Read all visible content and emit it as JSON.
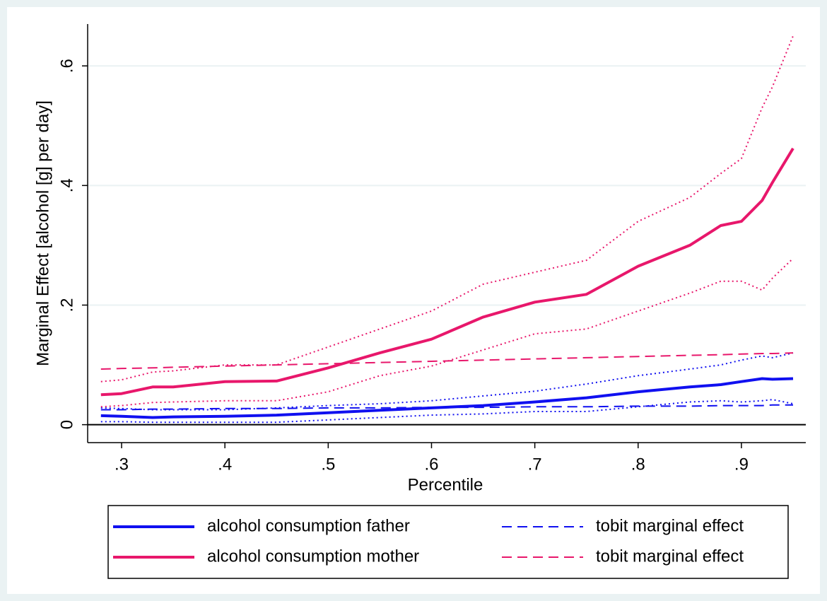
{
  "chart_data": {
    "type": "line",
    "xlabel": "Percentile",
    "ylabel": "Marginal Effect [alcohol [g] per day]",
    "x": [
      0.28,
      0.3,
      0.33,
      0.35,
      0.4,
      0.45,
      0.5,
      0.55,
      0.6,
      0.65,
      0.7,
      0.75,
      0.8,
      0.85,
      0.88,
      0.9,
      0.92,
      0.93,
      0.95
    ],
    "xlim": [
      0.28,
      0.95
    ],
    "xticks": [
      {
        "value": 0.3,
        "label": ".3"
      },
      {
        "value": 0.4,
        "label": ".4"
      },
      {
        "value": 0.5,
        "label": ".5"
      },
      {
        "value": 0.6,
        "label": ".6"
      },
      {
        "value": 0.7,
        "label": ".7"
      },
      {
        "value": 0.8,
        "label": ".8"
      },
      {
        "value": 0.9,
        "label": ".9"
      }
    ],
    "ylim": [
      -0.03,
      0.67
    ],
    "yticks": [
      0,
      {
        "value": 0.2,
        "label": ".2"
      },
      {
        "value": 0.4,
        "label": ".4"
      },
      {
        "value": 0.6,
        "label": ".6"
      }
    ],
    "grid": true,
    "legend": "bottom",
    "series": [
      {
        "name": "alcohol consumption father",
        "color": "#1010f0",
        "style": "solid",
        "values": [
          0.015,
          0.014,
          0.012,
          0.013,
          0.014,
          0.016,
          0.02,
          0.024,
          0.028,
          0.032,
          0.038,
          0.045,
          0.055,
          0.063,
          0.067,
          0.072,
          0.077,
          0.076,
          0.077
        ],
        "ci_lower": [
          0.005,
          0.005,
          0.004,
          0.004,
          0.004,
          0.004,
          0.008,
          0.012,
          0.016,
          0.018,
          0.022,
          0.022,
          0.03,
          0.038,
          0.04,
          0.038,
          0.04,
          0.042,
          0.035
        ],
        "ci_upper": [
          0.028,
          0.027,
          0.025,
          0.025,
          0.025,
          0.028,
          0.032,
          0.035,
          0.04,
          0.048,
          0.056,
          0.068,
          0.082,
          0.093,
          0.1,
          0.108,
          0.115,
          0.112,
          0.12
        ]
      },
      {
        "name": "tobit marginal effect",
        "color": "#1010f0",
        "style": "dashed",
        "values": [
          0.025,
          0.025,
          0.026,
          0.026,
          0.027,
          0.027,
          0.028,
          0.028,
          0.029,
          0.029,
          0.03,
          0.03,
          0.031,
          0.031,
          0.032,
          0.032,
          0.032,
          0.033,
          0.033
        ]
      },
      {
        "name": "alcohol consumption mother",
        "color": "#e8176b",
        "style": "solid",
        "values": [
          0.05,
          0.052,
          0.063,
          0.063,
          0.072,
          0.073,
          0.095,
          0.12,
          0.143,
          0.18,
          0.205,
          0.218,
          0.265,
          0.3,
          0.333,
          0.34,
          0.375,
          0.405,
          0.462
        ],
        "ci_lower": [
          0.03,
          0.032,
          0.037,
          0.038,
          0.04,
          0.04,
          0.055,
          0.082,
          0.098,
          0.125,
          0.152,
          0.16,
          0.19,
          0.22,
          0.24,
          0.24,
          0.225,
          0.245,
          0.278
        ],
        "ci_upper": [
          0.072,
          0.075,
          0.088,
          0.09,
          0.1,
          0.1,
          0.13,
          0.16,
          0.19,
          0.235,
          0.255,
          0.275,
          0.34,
          0.38,
          0.42,
          0.445,
          0.53,
          0.565,
          0.65
        ]
      },
      {
        "name": "tobit marginal effect",
        "color": "#e8176b",
        "style": "dashed",
        "values": [
          0.093,
          0.094,
          0.095,
          0.096,
          0.098,
          0.1,
          0.102,
          0.104,
          0.106,
          0.108,
          0.11,
          0.112,
          0.114,
          0.116,
          0.117,
          0.118,
          0.119,
          0.119,
          0.12
        ]
      }
    ]
  }
}
